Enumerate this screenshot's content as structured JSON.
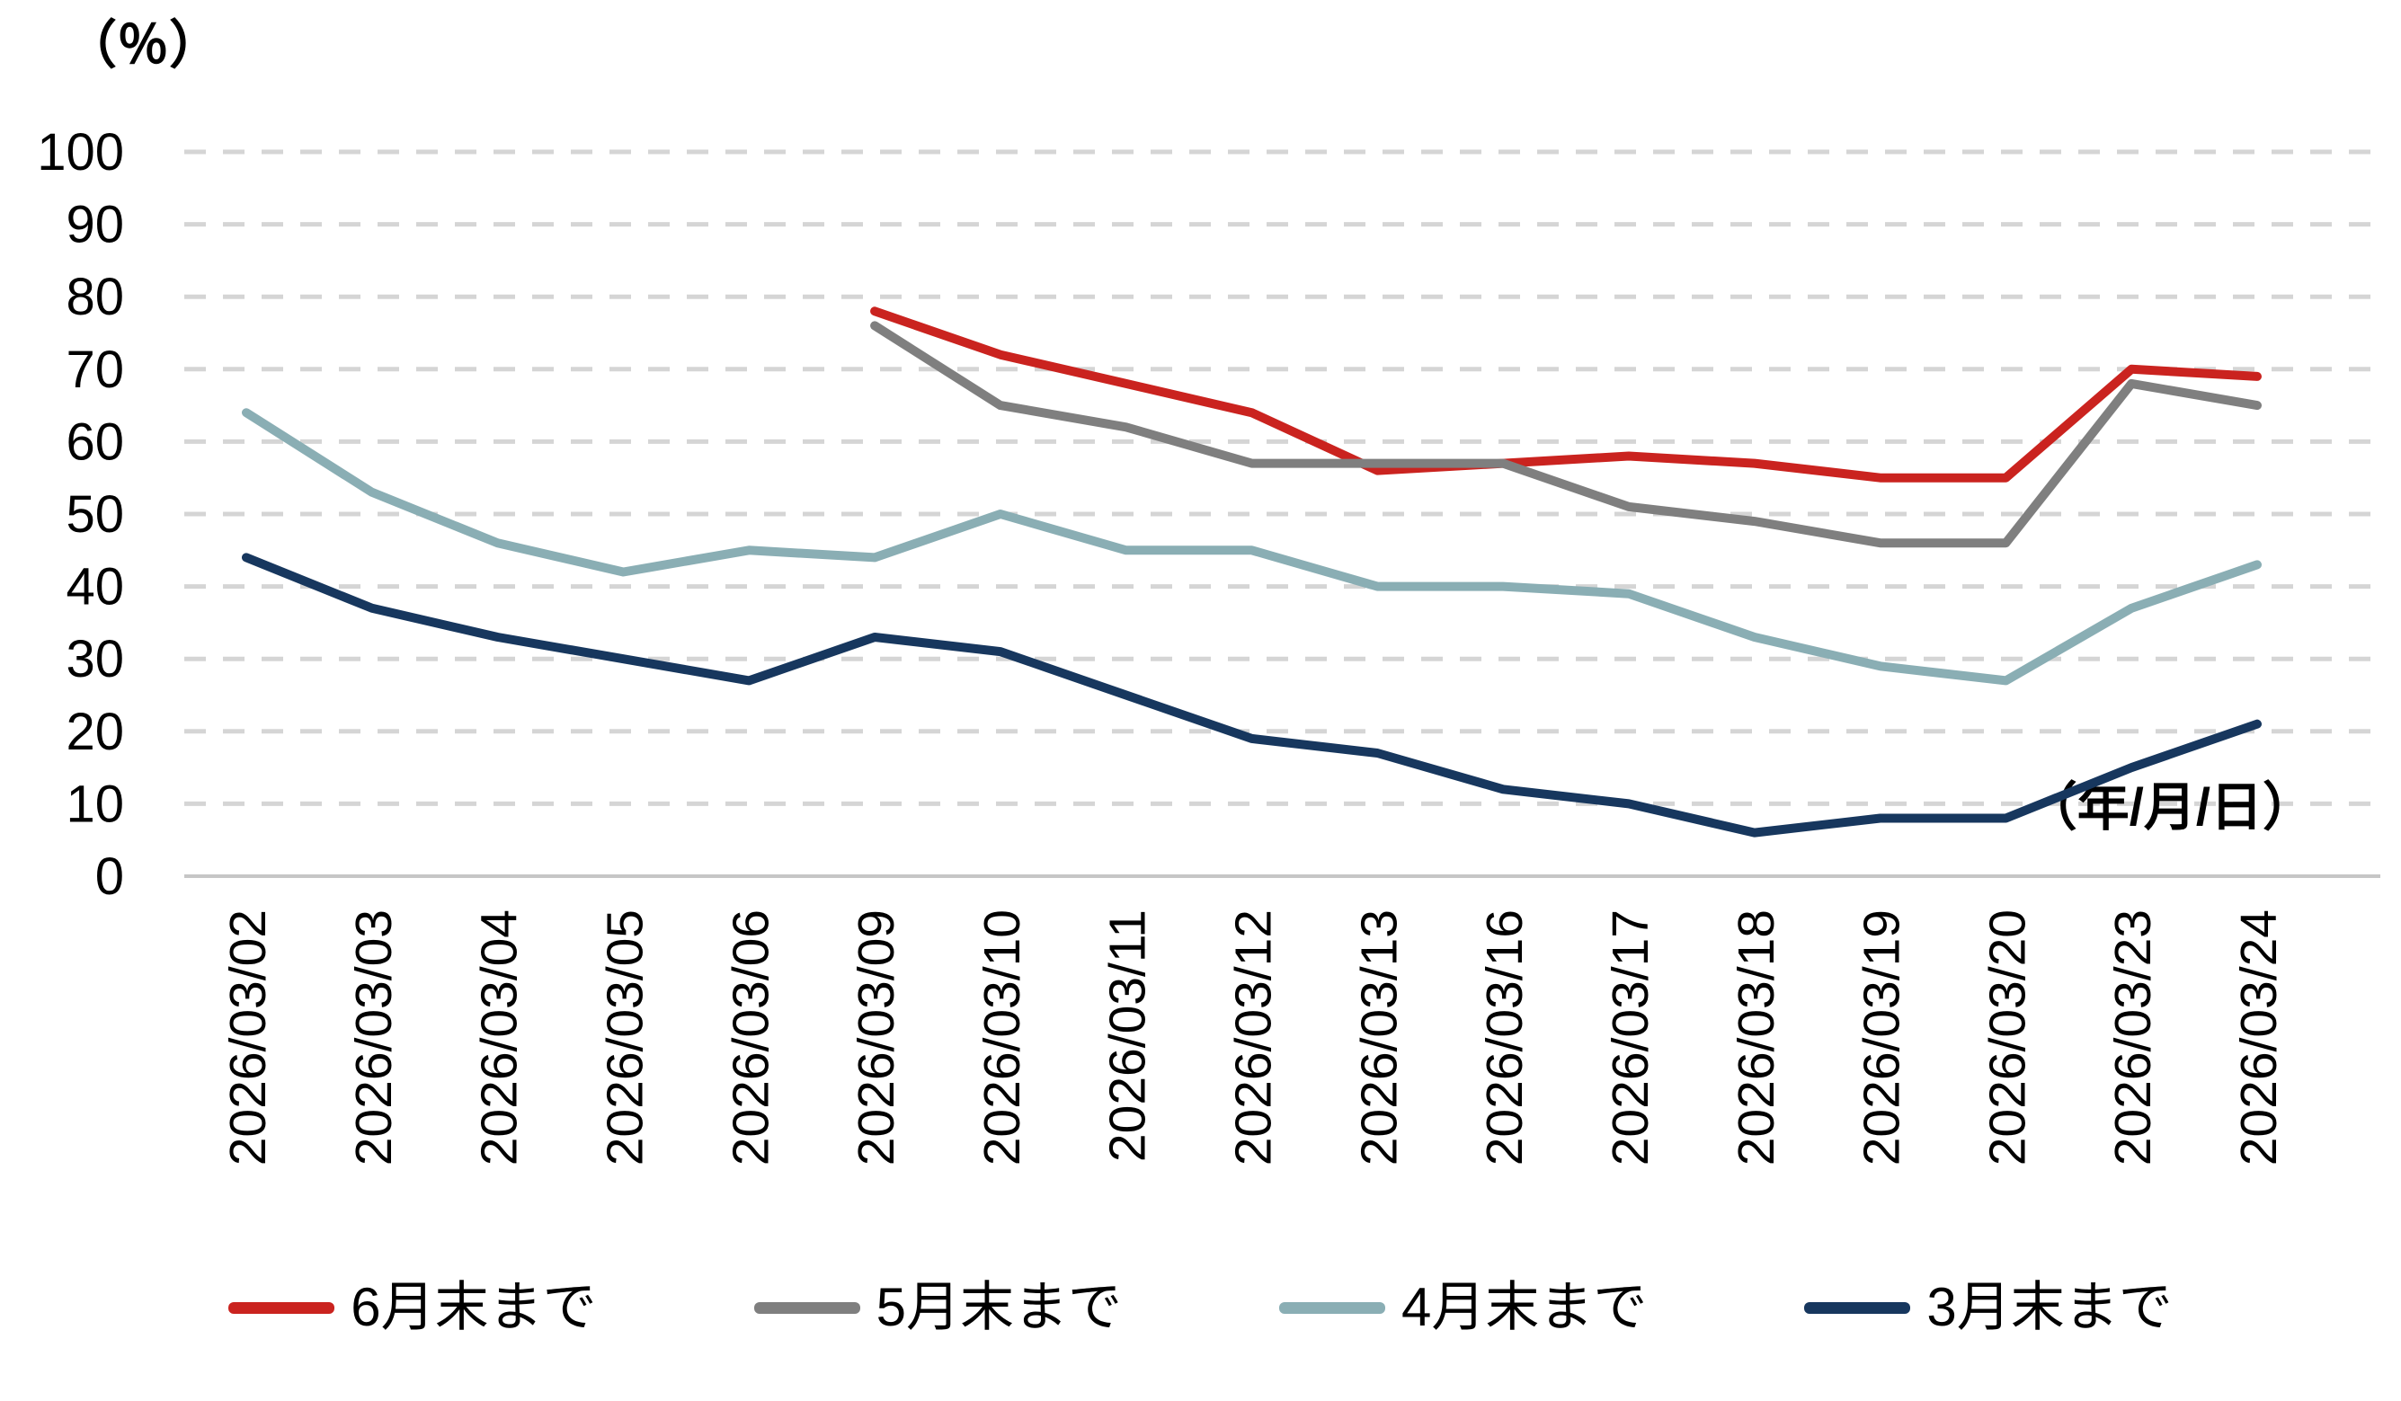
{
  "chart_data": {
    "type": "line",
    "title": "",
    "ylabel": "（％）",
    "xlabel": "（年/月/日）",
    "ylim": [
      0,
      100
    ],
    "ytick_step": 10,
    "yticks": [
      "0",
      "10",
      "20",
      "30",
      "40",
      "50",
      "60",
      "70",
      "80",
      "90",
      "100"
    ],
    "categories": [
      "2026/03/02",
      "2026/03/03",
      "2026/03/04",
      "2026/03/05",
      "2026/03/06",
      "2026/03/09",
      "2026/03/10",
      "2026/03/11",
      "2026/03/12",
      "2026/03/13",
      "2026/03/16",
      "2026/03/17",
      "2026/03/18",
      "2026/03/19",
      "2026/03/20",
      "2026/03/23",
      "2026/03/24"
    ],
    "series": [
      {
        "name": "6月末まで",
        "color": "#CA231F",
        "values": [
          null,
          null,
          null,
          null,
          null,
          78,
          72,
          68,
          64,
          56,
          57,
          58,
          57,
          55,
          55,
          70,
          69
        ]
      },
      {
        "name": "5月末まで",
        "color": "#7F7F7F",
        "values": [
          null,
          null,
          null,
          null,
          null,
          76,
          65,
          62,
          57,
          57,
          57,
          51,
          49,
          46,
          46,
          68,
          65
        ]
      },
      {
        "name": "4月末まで",
        "color": "#8AAEB4",
        "values": [
          64,
          53,
          46,
          42,
          45,
          44,
          50,
          45,
          45,
          40,
          40,
          39,
          33,
          29,
          27,
          37,
          43
        ]
      },
      {
        "name": "3月末まで",
        "color": "#17375E",
        "values": [
          44,
          37,
          33,
          30,
          27,
          33,
          31,
          25,
          19,
          17,
          12,
          10,
          6,
          8,
          8,
          15,
          21
        ]
      }
    ],
    "grid": {
      "horizontal": true,
      "dashed": true,
      "color": "#D5D5D5"
    },
    "axis_line_color": "#C6C6C6",
    "legend_position": "bottom"
  }
}
